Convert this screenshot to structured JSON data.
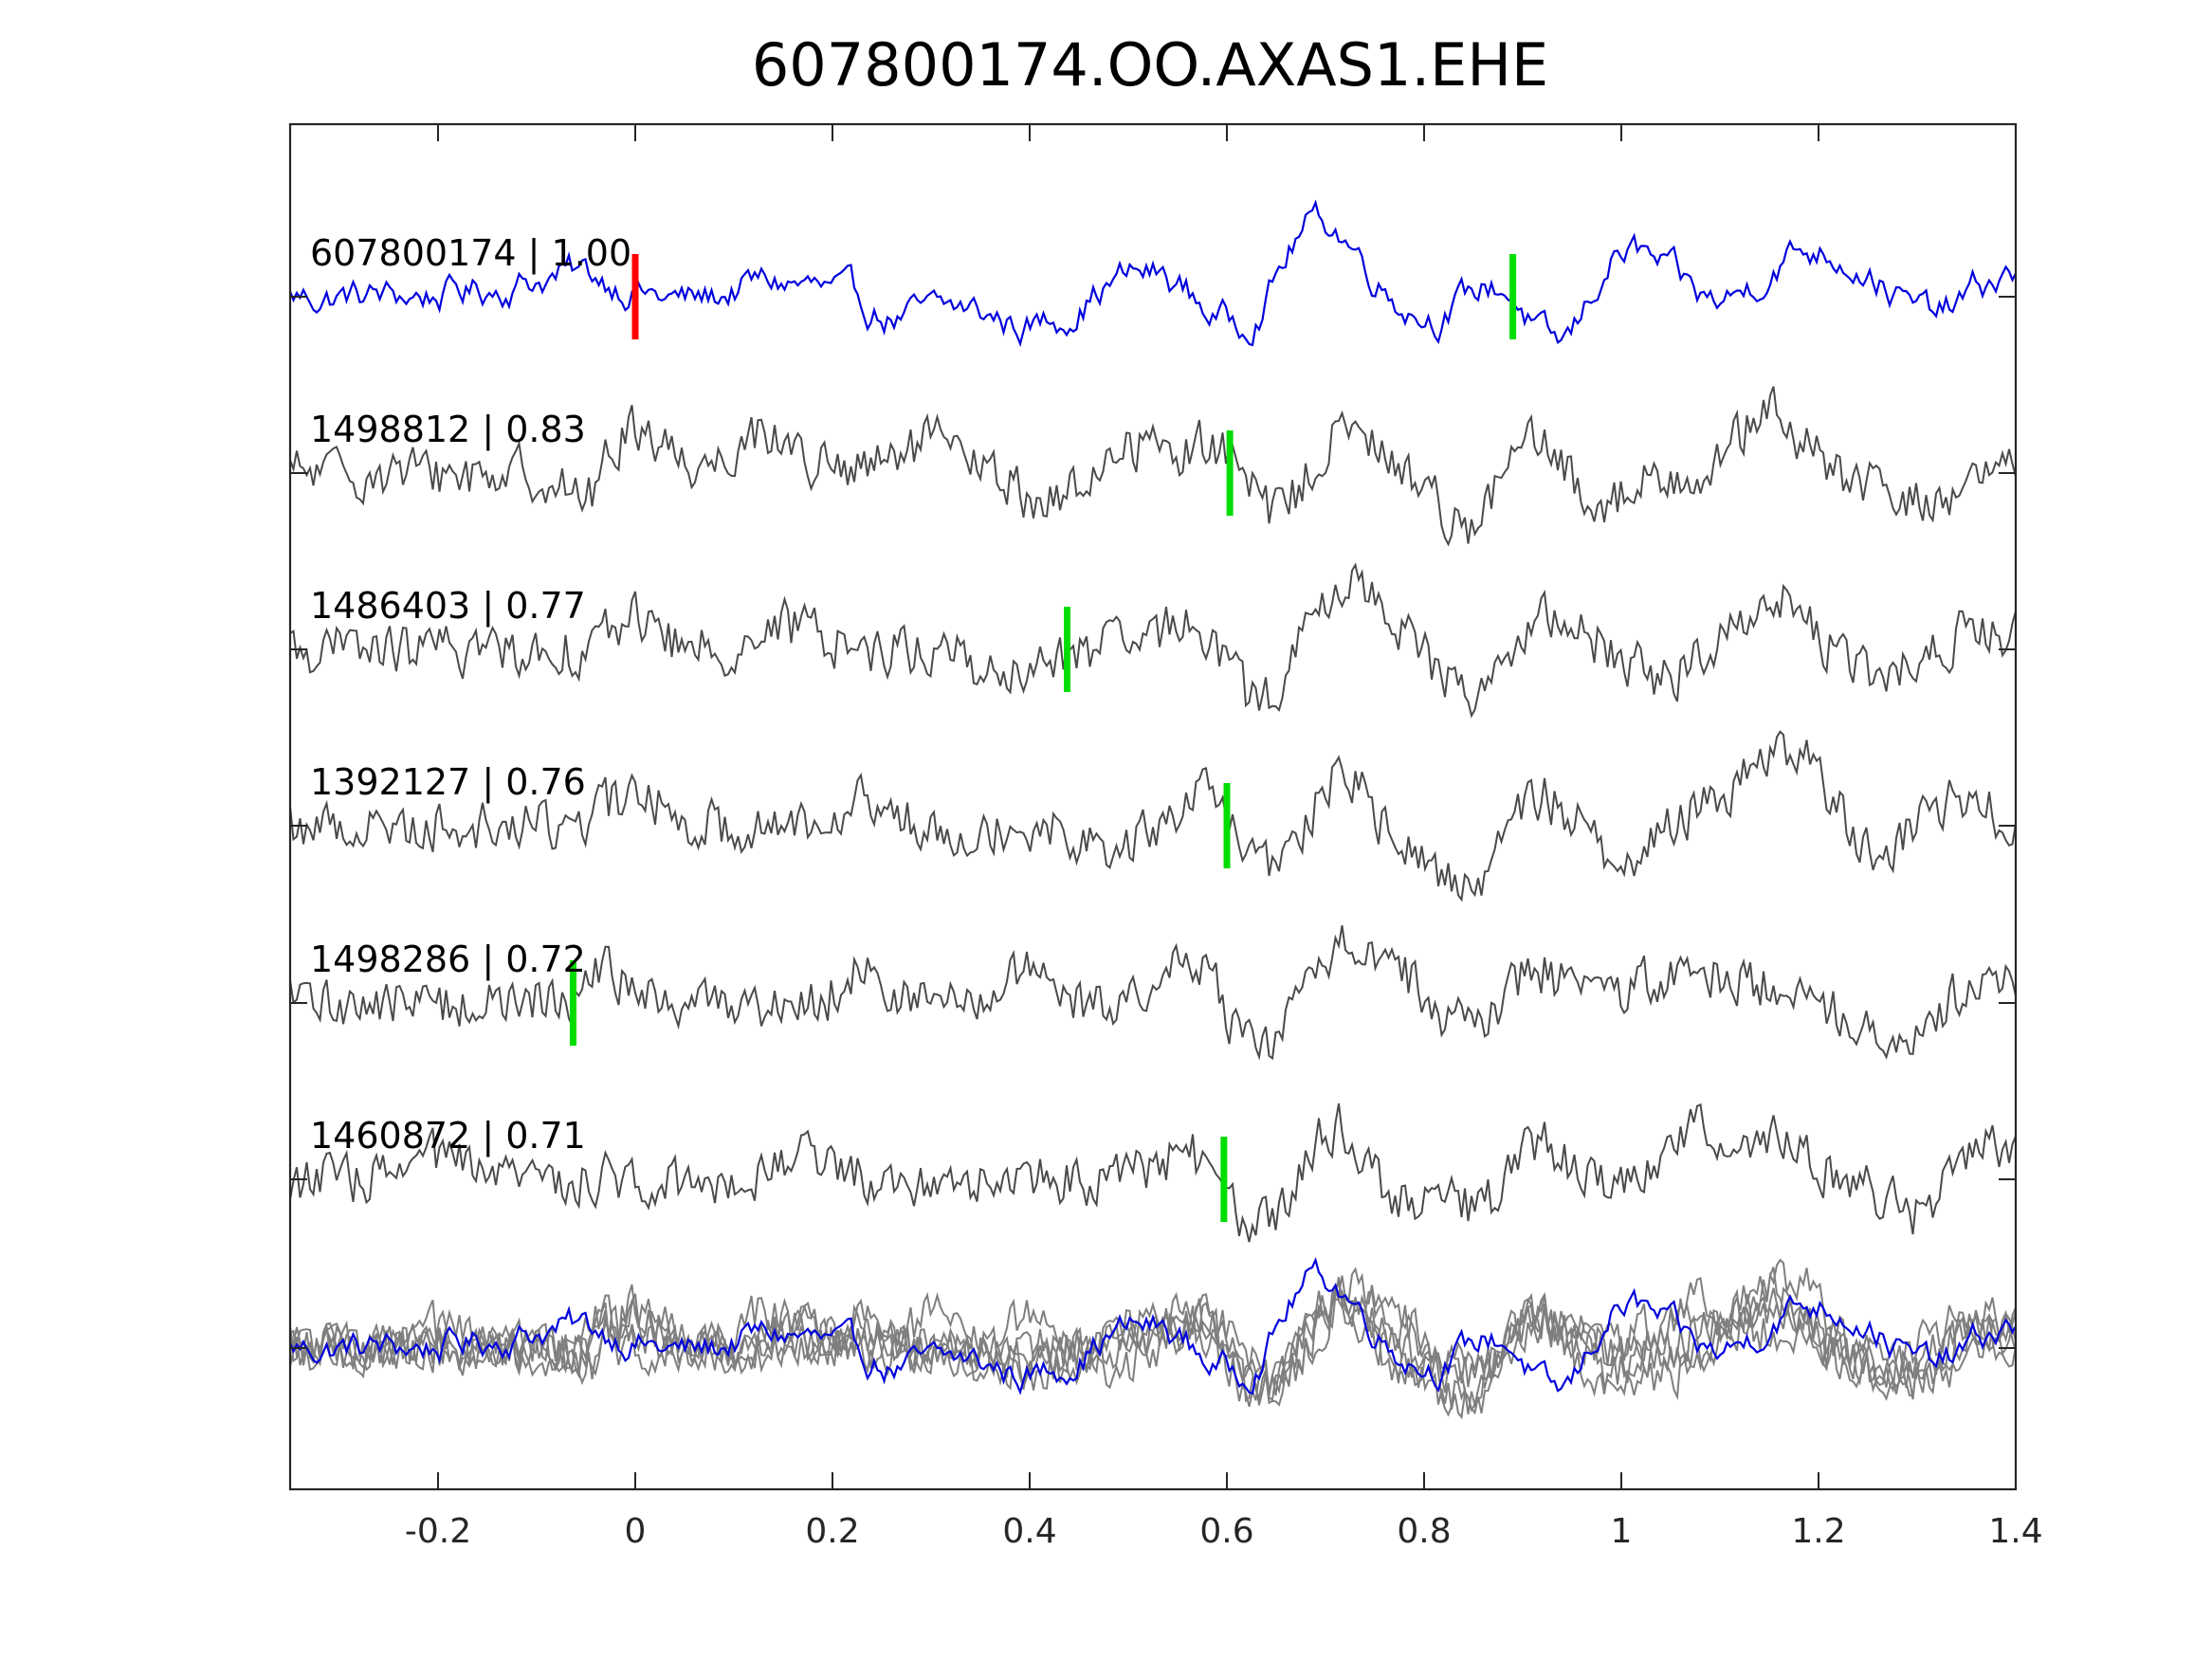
{
  "chart_data": {
    "type": "line",
    "title": "607800174.OO.AXAS1.EHE",
    "xlim": [
      -0.35,
      1.4
    ],
    "xticks": [
      -0.2,
      0,
      0.2,
      0.4,
      0.6,
      0.8,
      1,
      1.2,
      1.4
    ],
    "xtick_labels": [
      "-0.2",
      "0",
      "0.2",
      "0.4",
      "0.6",
      "0.8",
      "1",
      "1.2",
      "1.4"
    ],
    "grid": false,
    "overlay_panel": true,
    "colors": {
      "template": "#0000dd",
      "match": "#4a4a4a",
      "overlay": "#7f7f7f",
      "pick_red": "#ff0000",
      "pick_green": "#00dd00"
    },
    "series": [
      {
        "id": "607800174",
        "label": "607800174 | 1.00",
        "correlation": 1.0,
        "color": "template",
        "red_pick_time": 0.0,
        "green_pick_time": 0.89,
        "features": [
          [
            -0.05,
            0.4,
            0.07
          ],
          [
            0.05,
            -0.3,
            0.05
          ],
          [
            0.13,
            0.3,
            0.05
          ],
          [
            0.27,
            -0.35,
            0.04
          ],
          [
            0.4,
            -0.5,
            0.04
          ],
          [
            0.54,
            0.6,
            0.05
          ],
          [
            0.61,
            -0.8,
            0.05
          ],
          [
            0.685,
            1.3,
            0.035
          ],
          [
            0.74,
            0.4,
            0.05
          ],
          [
            0.82,
            -0.6,
            0.05
          ],
          [
            0.87,
            0.6,
            0.035
          ],
          [
            0.94,
            -1.4,
            0.03
          ],
          [
            0.98,
            0.8,
            0.04
          ],
          [
            1.05,
            0.4,
            0.05
          ],
          [
            1.1,
            -0.6,
            0.04
          ],
          [
            1.17,
            0.7,
            0.05
          ],
          [
            1.26,
            0.5,
            0.05
          ],
          [
            1.31,
            -0.7,
            0.04
          ],
          [
            1.38,
            0.4,
            0.04
          ]
        ]
      },
      {
        "id": "1498812",
        "label": "1498812 | 0.83",
        "correlation": 0.83,
        "color": "match",
        "green_pick_time": 0.603,
        "features": [
          [
            -0.05,
            -0.6,
            0.02
          ],
          [
            0.0,
            0.8,
            0.03
          ],
          [
            0.13,
            0.7,
            0.03
          ],
          [
            0.3,
            0.5,
            0.03
          ],
          [
            0.42,
            -0.5,
            0.03
          ],
          [
            0.51,
            0.5,
            0.03
          ],
          [
            0.6,
            0.7,
            0.03
          ],
          [
            0.64,
            -0.9,
            0.03
          ],
          [
            0.72,
            0.7,
            0.03
          ],
          [
            0.85,
            -1.0,
            0.03
          ],
          [
            0.9,
            0.7,
            0.03
          ],
          [
            0.98,
            -0.5,
            0.03
          ],
          [
            1.15,
            1.0,
            0.03
          ],
          [
            1.3,
            -0.5,
            0.04
          ]
        ]
      },
      {
        "id": "1486403",
        "label": "1486403 | 0.77",
        "correlation": 0.77,
        "color": "match",
        "green_pick_time": 0.438,
        "features": [
          [
            0.0,
            0.6,
            0.02
          ],
          [
            0.16,
            0.4,
            0.03
          ],
          [
            0.38,
            -0.5,
            0.03
          ],
          [
            0.57,
            0.6,
            0.03
          ],
          [
            0.63,
            -1.0,
            0.03
          ],
          [
            0.73,
            1.1,
            0.04
          ],
          [
            0.85,
            -0.8,
            0.04
          ],
          [
            0.92,
            0.6,
            0.04
          ],
          [
            1.05,
            -0.5,
            0.04
          ],
          [
            1.15,
            0.9,
            0.04
          ],
          [
            1.26,
            -0.5,
            0.04
          ],
          [
            1.36,
            0.3,
            0.04
          ]
        ]
      },
      {
        "id": "1392127",
        "label": "1392127 | 0.76",
        "correlation": 0.76,
        "color": "match",
        "green_pick_time": 0.6,
        "features": [
          [
            0.0,
            0.5,
            0.03
          ],
          [
            0.22,
            0.4,
            0.03
          ],
          [
            0.49,
            -0.4,
            0.03
          ],
          [
            0.58,
            0.6,
            0.03
          ],
          [
            0.64,
            -0.8,
            0.03
          ],
          [
            0.72,
            0.9,
            0.03
          ],
          [
            0.78,
            -0.5,
            0.03
          ],
          [
            0.85,
            -1.0,
            0.03
          ],
          [
            0.91,
            0.6,
            0.03
          ],
          [
            1.0,
            -0.5,
            0.03
          ],
          [
            1.13,
            0.7,
            0.04
          ],
          [
            1.18,
            0.9,
            0.03
          ],
          [
            1.27,
            -0.6,
            0.03
          ],
          [
            1.33,
            0.5,
            0.04
          ]
        ]
      },
      {
        "id": "1498286",
        "label": "1498286 | 0.72",
        "correlation": 0.72,
        "color": "match",
        "green_pick_time": -0.063,
        "features": [
          [
            -0.03,
            0.5,
            0.02
          ],
          [
            0.23,
            0.6,
            0.02
          ],
          [
            0.39,
            0.5,
            0.02
          ],
          [
            0.57,
            0.8,
            0.03
          ],
          [
            0.63,
            -1.0,
            0.03
          ],
          [
            0.73,
            1.1,
            0.04
          ],
          [
            0.85,
            -0.4,
            0.03
          ],
          [
            0.91,
            0.6,
            0.03
          ],
          [
            1.04,
            0.4,
            0.03
          ],
          [
            1.12,
            0.4,
            0.04
          ],
          [
            1.27,
            -0.6,
            0.03
          ],
          [
            1.38,
            0.4,
            0.03
          ]
        ]
      },
      {
        "id": "1460872",
        "label": "1460872 | 0.71",
        "correlation": 0.71,
        "color": "match",
        "green_pick_time": 0.597,
        "features": [
          [
            -0.2,
            0.4,
            0.02
          ],
          [
            0.17,
            0.4,
            0.03
          ],
          [
            0.56,
            0.5,
            0.03
          ],
          [
            0.63,
            -0.9,
            0.03
          ],
          [
            0.71,
            1.0,
            0.03
          ],
          [
            0.77,
            -0.4,
            0.03
          ],
          [
            0.87,
            -0.9,
            0.03
          ],
          [
            0.9,
            1.0,
            0.03
          ],
          [
            1.07,
            0.9,
            0.02
          ],
          [
            1.15,
            0.8,
            0.03
          ],
          [
            1.3,
            -0.6,
            0.03
          ],
          [
            1.37,
            0.7,
            0.03
          ]
        ]
      }
    ]
  }
}
